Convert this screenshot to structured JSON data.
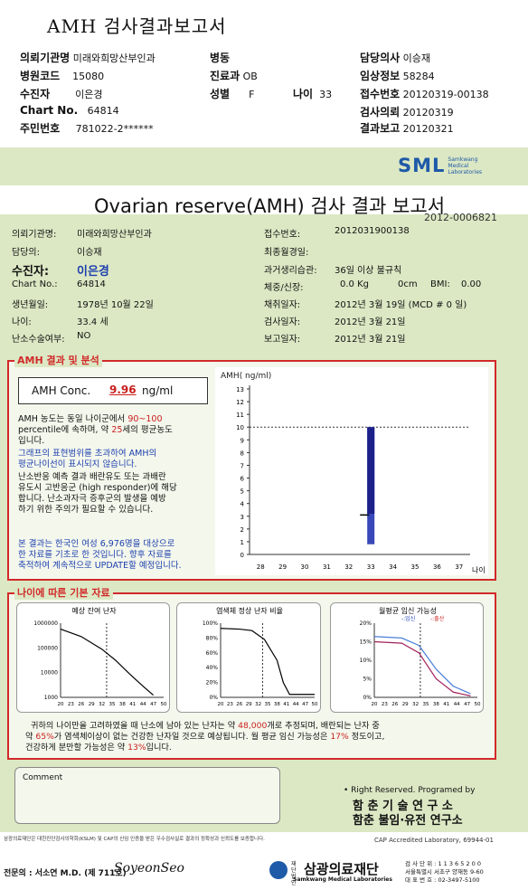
{
  "doc_title": "AMH 검사결과보고서",
  "header": {
    "inst_label": "의뢰기관명",
    "inst_value": "미래와희망산부인과",
    "hosp_label": "병원코드",
    "hosp_value": "15080",
    "patient_label": "수진자",
    "patient_value": "이은경",
    "chart_label": "Chart No.",
    "chart_value": "64814",
    "ssn_label": "주민번호",
    "ssn_value": "781022-2******",
    "ward_label": "병동",
    "ward_value": "",
    "dept_label": "진료과",
    "dept_value": "OB",
    "sex_label": "성별",
    "sex_value": "F",
    "age_label": "나이",
    "age_value": "33",
    "doctor_label": "담당의사",
    "doctor_value": "이승재",
    "clin_label": "임상정보",
    "clin_value": "58284",
    "acc_label": "접수번호",
    "acc_value": "20120319-00138",
    "req_label": "검사의뢰",
    "req_value": "20120319",
    "rep_label": "결과보고",
    "rep_value": "20120321"
  },
  "sml": {
    "logo": "SML",
    "sub1": "Samkwang",
    "sub2": "Medical",
    "sub3": "Laboratories"
  },
  "report": {
    "title": "Ovarian reserve(AMH) 검사 결과 보고서",
    "number": "2012-0006821",
    "f_inst_l": "의뢰기관명:",
    "f_inst_v": "미래와희망산부인과",
    "f_doc_l": "담당의:",
    "f_doc_v": "이승재",
    "f_pat_l": "수진자:",
    "f_pat_v": "이은경",
    "f_chart_l": "Chart No.:",
    "f_chart_v": "64814",
    "f_birth_l": "생년월일:",
    "f_birth_v": "1978년 10월 22일",
    "f_age_l": "나이:",
    "f_age_v": "33.4 세",
    "f_ovsurg_l": "난소수술여부:",
    "f_ovsurg_v": "NO",
    "f_acc_l": "접수번호:",
    "f_acc_v": "2012031900138",
    "f_lmp_l": "최종월경일:",
    "f_lmp_v": "",
    "f_mens_l": "과거생리습관:",
    "f_mens_v": "36일 이상 불규칙",
    "f_wh_l": "체중/신장:",
    "f_w_v": "0.0 Kg",
    "f_h_v": "0cm",
    "f_bmi_l": "BMI:",
    "f_bmi_v": "0.00",
    "f_col_l": "채취일자:",
    "f_col_v": "2012년 3월 19일 (MCD # 0 일)",
    "f_test_l": "검사일자:",
    "f_test_v": "2012년 3월 21일",
    "f_rep_l": "보고일자:",
    "f_rep_v": "2012년 3월 21일"
  },
  "amh": {
    "section": "AMH 결과 및 분석",
    "conc_label": "AMH Conc.",
    "conc_value": "9.96",
    "conc_unit": "ng/ml",
    "p1a": "AMH 농도는 동일 나이군에서",
    "p1b": "90~100",
    "p1c": "percentile에 속하며, 약",
    "p1d": "25",
    "p1e": "세의 평균농도",
    "p1f": "입니다.",
    "p2a": "그래프의 표현범위를 초과하여 AMH의",
    "p2b": "평균나이선이 표시되지 않습니다.",
    "p3a": "난소반응 예측 결과 배란유도 또는 과배란",
    "p3b": "유도시 고반응군 (high responder)에 해당",
    "p3c": "합니다. 난소과자극 증후군의 발생을 예방",
    "p3d": "하기 위한 주의가 필요할 수 있습니다.",
    "p4a": "본 결과는 한국인 여성 6,976명을 대상으로",
    "p4b": "한 자료를 기초로 한 것입니다. 향후 자료를",
    "p4c": "축적하여 계속적으로 UPDATE할 예정입니다."
  },
  "chart_data": [
    {
      "type": "bar",
      "ylabel": "AMH( ng/ml)",
      "xlabel": "나이",
      "x": [
        28,
        29,
        30,
        31,
        32,
        33,
        34,
        35,
        36,
        37
      ],
      "y_ticks": [
        0,
        1,
        2,
        3,
        4,
        5,
        6,
        7,
        8,
        9,
        10,
        11,
        12,
        13
      ],
      "ylim": [
        0,
        13
      ],
      "reference_line": 10,
      "bar": {
        "x": 33,
        "outer_range": [
          0.8,
          10
        ],
        "inner_range": [
          3.2,
          10
        ],
        "marker": 3.1
      }
    },
    {
      "type": "line",
      "title": "예상 잔여 난자",
      "y_log": true,
      "y_ticks": [
        "1000000",
        "100000",
        "10000",
        "1000"
      ],
      "x_ticks": [
        20,
        23,
        26,
        29,
        32,
        35,
        38,
        41,
        44,
        47,
        50
      ],
      "marker_x": 33.4
    },
    {
      "type": "line",
      "title": "염색체 정상 난자 비율",
      "y_ticks": [
        "100%",
        "80%",
        "60%",
        "40%",
        "20%",
        "0%"
      ],
      "x_ticks": [
        20,
        23,
        26,
        29,
        32,
        35,
        38,
        41,
        44,
        47,
        50
      ],
      "marker_x": 33.4
    },
    {
      "type": "line",
      "title": "월평균 임신 가능성",
      "legend": [
        "임신",
        "출산"
      ],
      "y_ticks": [
        "20%",
        "15%",
        "10%",
        "5%",
        "0%"
      ],
      "x_ticks": [
        20,
        23,
        26,
        29,
        32,
        35,
        38,
        41,
        44,
        47,
        50
      ],
      "marker_x": 33.4
    }
  ],
  "basic": {
    "section": "나이에 따른 기본 자료",
    "s1": "귀하의 나이만을 고려하였을 때 난소에 남아 있는 난자는 약",
    "s1v": "48,000",
    "s1b": "개로 추정되며, 배란되는 난자 중",
    "s2a": "약",
    "s2v": "65%",
    "s2b": "가 염색체이상이 없는 건강한 난자일 것으로 예상됩니다. 월 평균 임신 가능성은",
    "s2c": "17%",
    "s2d": "정도이고,",
    "s3a": "건강하게 분만할 가능성은 약",
    "s3v": "13%",
    "s3b": "입니다."
  },
  "footer": {
    "comment": "Comment",
    "rights": "• Right Reserved. Programed by",
    "inst1": "함 춘 기 술 연 구 소",
    "inst2": "함춘 불임·유전 연구소",
    "note": "삼광의료재단은 대한진단검사의학회(KSLM) 및 CAP의 신임 인증을 받은 우수검사실로 결과의 정확성과 신뢰도를 보증합니다.",
    "cap": "CAP Accredited Laboratory, 69944-01",
    "md": "전문의 : 서소연 M.D. (제 711호)",
    "sign": "SoyeonSeo",
    "org_pre": "재단법인",
    "org": "삼광의료재단",
    "org_en": "Samkwang Medical Laboratories",
    "biz": "검 사 단 위 : 1 1 3 6 5 2 0 0",
    "addr": "서울특별시 서초구 양재동 9-60",
    "tel": "대 표 번 호 : 02-3497-5100"
  }
}
